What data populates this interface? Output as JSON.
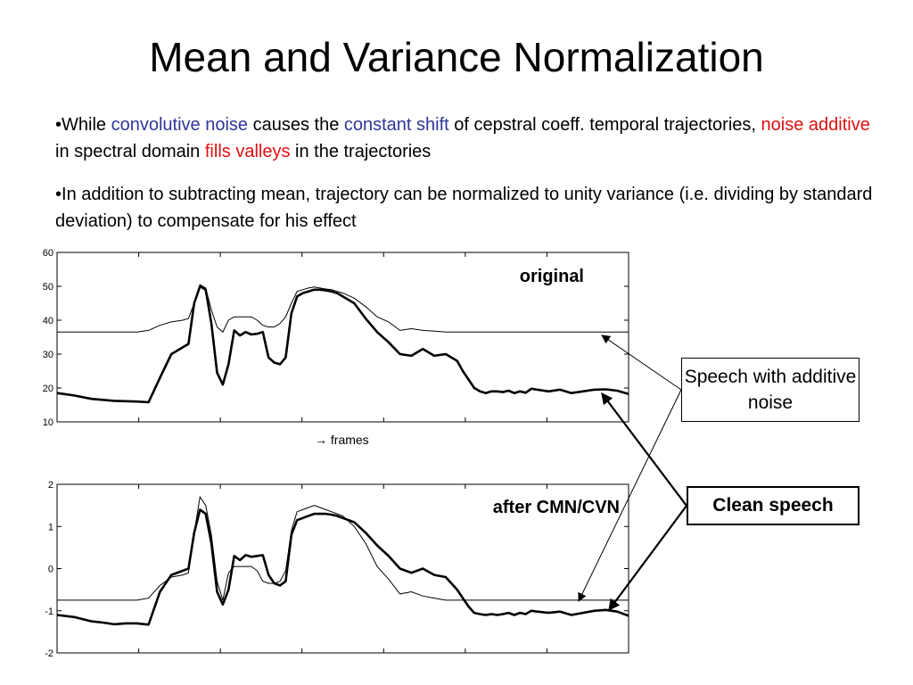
{
  "slide": {
    "title": "Mean and Variance Normalization",
    "bullet1": {
      "marker": "•",
      "t1": "While ",
      "t2": "convolutive noise",
      "t3": " causes the ",
      "t4": "constant shift",
      "t5": " of cepstral coeff. temporal trajectories, ",
      "t6": "noise additive",
      "t7": " in spectral domain ",
      "t8": "fills valleys",
      "t9": " in the trajectories"
    },
    "bullet2": {
      "marker": "•",
      "text": "In addition to subtracting mean, trajectory can be normalized to unity variance (i.e. dividing by standard deviation) to compensate for his effect"
    },
    "callouts": {
      "noisy": "Speech with additive noise",
      "clean": "Clean speech"
    },
    "colors": {
      "blue_text": "#2f3699",
      "red_text": "#e01010"
    }
  },
  "chart_data": [
    {
      "type": "line",
      "title": "original",
      "xlabel": "→ frames",
      "ylim": [
        10,
        60
      ],
      "yticks": [
        "10",
        "20",
        "30",
        "40",
        "50",
        "60"
      ],
      "x": [
        0,
        3,
        6,
        8,
        10,
        12,
        14,
        16,
        18,
        20,
        22,
        23,
        24,
        25,
        26,
        27,
        28,
        29,
        30,
        31,
        32,
        33,
        34,
        35,
        36,
        37,
        38,
        39,
        40,
        41,
        42,
        43,
        44,
        45,
        46,
        47,
        48,
        49,
        50,
        52,
        54,
        56,
        58,
        60,
        62,
        64,
        66,
        68,
        70,
        71,
        72,
        73,
        74,
        75,
        76,
        77,
        78,
        79,
        80,
        81,
        82,
        83,
        84,
        86,
        88,
        90,
        92,
        94,
        96,
        98,
        100
      ],
      "series": [
        {
          "label": "clean",
          "values": [
            18.5,
            17.8,
            16.8,
            16.5,
            16.2,
            16.1,
            16,
            15.8,
            23,
            30,
            32,
            33,
            45,
            50,
            49,
            39,
            24.5,
            21,
            27,
            37,
            35.5,
            36.5,
            35.8,
            36,
            36.5,
            29,
            27.5,
            27,
            29,
            42,
            47,
            48,
            48.5,
            49,
            49,
            48.8,
            48.5,
            48,
            47,
            45,
            40.5,
            36.5,
            33.5,
            30,
            29.5,
            31.5,
            29.5,
            30,
            28,
            25,
            22.5,
            20,
            19,
            18.5,
            19,
            19,
            18.8,
            19.2,
            18.5,
            19,
            18.6,
            19.8,
            19.5,
            19,
            19.5,
            18.5,
            19,
            19.5,
            19.6,
            19.2,
            18.2
          ]
        },
        {
          "label": "with additive noise",
          "values": [
            36.5,
            36.5,
            36.5,
            36.5,
            36.5,
            36.5,
            36.5,
            37,
            38.5,
            39.5,
            40,
            40.5,
            45,
            50.5,
            49.5,
            43,
            38,
            36.5,
            40,
            41,
            41,
            41,
            41,
            40,
            38.5,
            38,
            38,
            39,
            41,
            45,
            48.5,
            49,
            49.5,
            49.8,
            49.5,
            49.2,
            49,
            48.5,
            48,
            46.5,
            44,
            41,
            39.5,
            37,
            37.5,
            37,
            36.8,
            36.5,
            36.5,
            36.5,
            36.5,
            36.5,
            36.5,
            36.5,
            36.5,
            36.5,
            36.5,
            36.5,
            36.5,
            36.5,
            36.5,
            36.5,
            36.5,
            36.5,
            36.5,
            36.5,
            36.5,
            36.5,
            36.5,
            36.5,
            36.5
          ]
        }
      ]
    },
    {
      "type": "line",
      "title": "after CMN/CVN",
      "ylim": [
        -2,
        2
      ],
      "yticks": [
        "-2",
        "-1",
        "0",
        "1",
        "2"
      ],
      "x": [
        0,
        3,
        6,
        8,
        10,
        12,
        14,
        16,
        18,
        20,
        22,
        23,
        24,
        25,
        26,
        27,
        28,
        29,
        30,
        31,
        32,
        33,
        34,
        35,
        36,
        37,
        38,
        39,
        40,
        41,
        42,
        43,
        44,
        45,
        46,
        47,
        48,
        49,
        50,
        52,
        54,
        56,
        58,
        60,
        62,
        64,
        66,
        68,
        70,
        71,
        72,
        73,
        74,
        75,
        76,
        77,
        78,
        79,
        80,
        81,
        82,
        83,
        84,
        86,
        88,
        90,
        92,
        94,
        96,
        98,
        100
      ],
      "series": [
        {
          "label": "clean",
          "values": [
            -1.1,
            -1.15,
            -1.25,
            -1.28,
            -1.32,
            -1.3,
            -1.3,
            -1.33,
            -0.55,
            -0.15,
            -0.05,
            0,
            0.85,
            1.4,
            1.3,
            0.6,
            -0.55,
            -0.85,
            -0.5,
            0.3,
            0.2,
            0.32,
            0.28,
            0.3,
            0.32,
            -0.15,
            -0.35,
            -0.4,
            -0.3,
            0.8,
            1.15,
            1.2,
            1.25,
            1.3,
            1.3,
            1.3,
            1.28,
            1.25,
            1.2,
            1.1,
            0.85,
            0.55,
            0.3,
            0,
            -0.1,
            0,
            -0.15,
            -0.2,
            -0.5,
            -0.7,
            -0.9,
            -1.05,
            -1.08,
            -1.1,
            -1.08,
            -1.1,
            -1.08,
            -1.05,
            -1.1,
            -1.05,
            -1.08,
            -1,
            -1.02,
            -1.05,
            -1.02,
            -1.1,
            -1.05,
            -1.0,
            -0.98,
            -1.02,
            -1.12
          ]
        },
        {
          "label": "with additive noise",
          "values": [
            -0.75,
            -0.75,
            -0.75,
            -0.75,
            -0.75,
            -0.75,
            -0.75,
            -0.7,
            -0.4,
            -0.2,
            -0.15,
            -0.1,
            0.85,
            1.7,
            1.5,
            0.8,
            -0.3,
            -0.75,
            -0.1,
            0.05,
            0.05,
            0.05,
            0.05,
            -0.05,
            -0.3,
            -0.35,
            -0.35,
            -0.3,
            -0.05,
            0.9,
            1.35,
            1.4,
            1.45,
            1.5,
            1.45,
            1.4,
            1.35,
            1.3,
            1.25,
            1.0,
            0.6,
            0.05,
            -0.25,
            -0.6,
            -0.55,
            -0.65,
            -0.7,
            -0.75,
            -0.75,
            -0.75,
            -0.75,
            -0.75,
            -0.75,
            -0.75,
            -0.75,
            -0.75,
            -0.75,
            -0.75,
            -0.75,
            -0.75,
            -0.75,
            -0.75,
            -0.75,
            -0.75,
            -0.75,
            -0.75,
            -0.75,
            -0.75,
            -0.75,
            -0.75,
            -0.75
          ]
        }
      ]
    }
  ]
}
